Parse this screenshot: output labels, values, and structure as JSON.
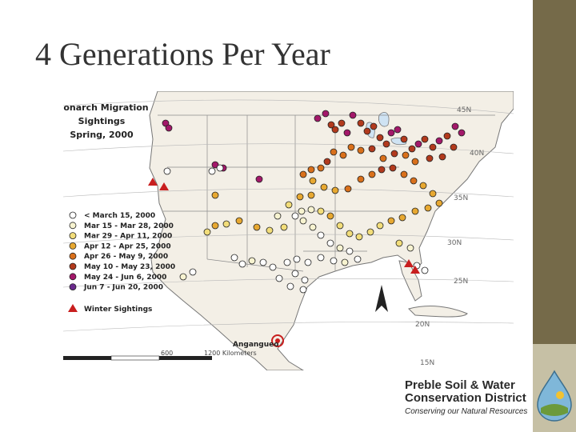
{
  "slide": {
    "title": "4 Generations Per Year"
  },
  "map": {
    "title_lines": [
      "Monarch Migration",
      "Sightings",
      "Spring, 2000"
    ],
    "legend": [
      {
        "label": "< March 15, 2000",
        "color": "#ffffff"
      },
      {
        "label": "Mar 15 - Mar 28, 2000",
        "color": "#f7f3d0"
      },
      {
        "label": "Mar 29 - Apr 11, 2000",
        "color": "#f2dd7a"
      },
      {
        "label": "Apr 12 - Apr 25, 2000",
        "color": "#e7a831"
      },
      {
        "label": "Apr 26 - May 9, 2000",
        "color": "#d9701b"
      },
      {
        "label": "May 10 - May 23, 2000",
        "color": "#b23a1d"
      },
      {
        "label": "May 24 - Jun 6, 2000",
        "color": "#a3186a"
      },
      {
        "label": "Jun 7 - Jun 20, 2000",
        "color": "#6a2a8c"
      }
    ],
    "winter_label": "Winter Sightings",
    "winter_color": "#c81e1e",
    "place_label": "Angangueo",
    "scale_labels": [
      "600",
      "1200 Kilometers"
    ],
    "latitude_labels": [
      "45N",
      "40N",
      "35N",
      "30N",
      "25N",
      "20N",
      "15N"
    ]
  },
  "logo": {
    "line1": "Preble Soil & Water",
    "line2": "Conservation District",
    "tagline": "Conserving our Natural Resources"
  }
}
